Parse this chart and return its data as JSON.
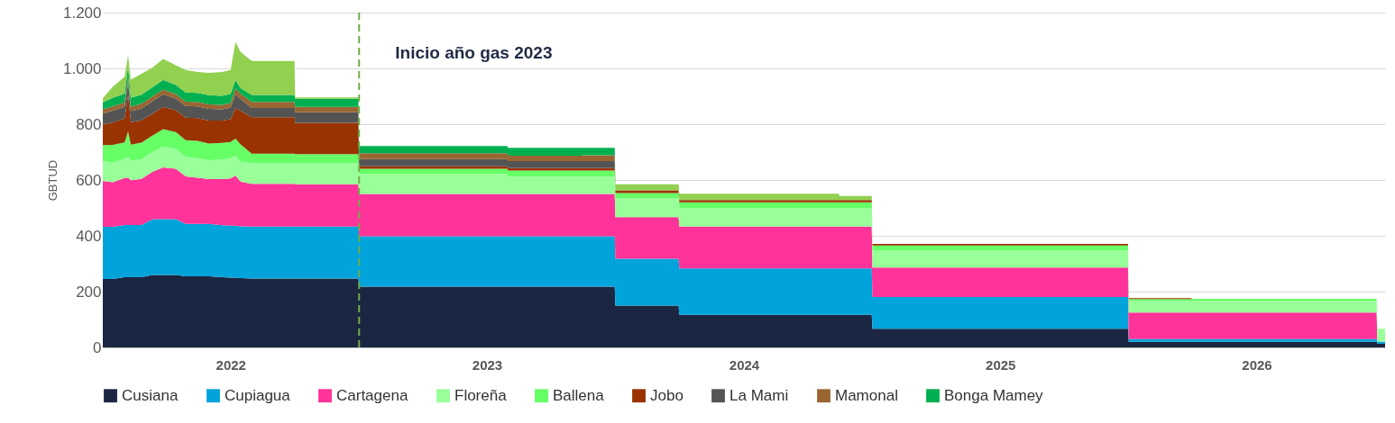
{
  "chart_data": {
    "type": "area",
    "stacked": true,
    "ylabel": "GBTUD",
    "x": [
      "2021-12-01",
      "2021-12-15",
      "2022-01-01",
      "2022-01-06",
      "2022-01-10",
      "2022-01-25",
      "2022-02-10",
      "2022-02-25",
      "2022-03-15",
      "2022-03-29",
      "2022-04-15",
      "2022-05-01",
      "2022-05-20",
      "2022-06-01",
      "2022-06-08",
      "2022-06-15",
      "2022-07-01",
      "2022-08-31",
      "2022-09-01",
      "2022-11-30",
      "2022-12-01",
      "2023-06-30",
      "2023-07-01",
      "2023-10-14",
      "2023-10-15",
      "2023-11-30",
      "2023-12-01",
      "2024-02-29",
      "2024-03-01",
      "2024-10-14",
      "2024-10-15",
      "2024-11-30",
      "2024-12-01",
      "2025-11-30",
      "2025-12-01",
      "2026-02-28",
      "2026-03-01",
      "2026-11-19",
      "2026-11-20",
      "2026-12-01"
    ],
    "series": [
      {
        "name": "Cusiana",
        "color": "#1b2642",
        "values": [
          245,
          245,
          252,
          252,
          252,
          252,
          260,
          260,
          260,
          255,
          255,
          255,
          252,
          250,
          250,
          248,
          247,
          247,
          247,
          247,
          218,
          218,
          218,
          218,
          218,
          218,
          150,
          150,
          117,
          117,
          117,
          117,
          67,
          67,
          20,
          20,
          20,
          20,
          13,
          13
        ]
      },
      {
        "name": "Cupiagua",
        "color": "#00a3da",
        "values": [
          187,
          187,
          187,
          187,
          187,
          187,
          200,
          200,
          200,
          188,
          188,
          188,
          186,
          186,
          186,
          186,
          186,
          186,
          186,
          186,
          180,
          180,
          180,
          180,
          180,
          180,
          168,
          168,
          166,
          166,
          166,
          166,
          114,
          114,
          10,
          10,
          10,
          10,
          8,
          8
        ]
      },
      {
        "name": "Cartagena",
        "color": "#ff3399",
        "values": [
          165,
          160,
          168,
          170,
          160,
          165,
          170,
          185,
          180,
          170,
          165,
          160,
          165,
          170,
          180,
          160,
          153,
          153,
          152,
          152,
          152,
          152,
          152,
          152,
          152,
          152,
          149,
          149,
          150,
          150,
          150,
          150,
          105,
          105,
          95,
          95,
          95,
          95,
          0,
          0
        ]
      },
      {
        "name": "Floreña",
        "color": "#99ff99",
        "values": [
          70,
          72,
          68,
          75,
          70,
          70,
          70,
          75,
          72,
          70,
          70,
          68,
          70,
          72,
          72,
          72,
          75,
          75,
          75,
          75,
          72,
          72,
          62,
          62,
          62,
          62,
          68,
          68,
          67,
          67,
          67,
          67,
          62,
          62,
          41,
          41,
          42,
          42,
          42,
          42
        ]
      },
      {
        "name": "Ballena",
        "color": "#66ff66",
        "values": [
          58,
          62,
          60,
          90,
          58,
          60,
          60,
          62,
          60,
          60,
          62,
          60,
          60,
          58,
          60,
          62,
          33,
          33,
          33,
          33,
          18,
          18,
          22,
          22,
          22,
          22,
          18,
          18,
          20,
          20,
          20,
          20,
          17,
          17,
          7,
          7,
          7,
          7,
          3,
          3
        ]
      },
      {
        "name": "Jobo",
        "color": "#993300",
        "values": [
          75,
          80,
          85,
          130,
          80,
          80,
          78,
          80,
          78,
          80,
          82,
          82,
          80,
          82,
          110,
          120,
          131,
          131,
          112,
          112,
          9,
          9,
          9,
          9,
          9,
          9,
          10,
          10,
          8,
          8,
          8,
          8,
          6,
          6,
          4,
          4,
          0,
          0,
          0,
          0
        ]
      },
      {
        "name": "La Mami",
        "color": "#545454",
        "values": [
          38,
          42,
          42,
          45,
          40,
          42,
          45,
          45,
          42,
          42,
          42,
          42,
          40,
          42,
          50,
          42,
          33,
          33,
          38,
          38,
          26,
          26,
          25,
          25,
          25,
          25,
          0,
          0,
          0,
          0,
          0,
          0,
          0,
          0,
          0,
          0,
          0,
          0,
          0,
          0
        ]
      },
      {
        "name": "Mamonal",
        "color": "#996633",
        "values": [
          15,
          16,
          16,
          18,
          16,
          17,
          17,
          17,
          16,
          16,
          16,
          16,
          16,
          16,
          20,
          20,
          22,
          22,
          19,
          19,
          21,
          21,
          19,
          19,
          21,
          21,
          0,
          0,
          0,
          0,
          0,
          0,
          0,
          0,
          0,
          0,
          0,
          0,
          0,
          0
        ]
      },
      {
        "name": "Bonga Mamey",
        "color": "#00b050",
        "values": [
          25,
          30,
          32,
          40,
          32,
          33,
          33,
          35,
          33,
          33,
          32,
          33,
          33,
          33,
          30,
          20,
          25,
          25,
          29,
          29,
          26,
          26,
          28,
          28,
          26,
          26,
          0,
          0,
          0,
          0,
          0,
          0,
          0,
          0,
          0,
          0,
          0,
          0,
          0,
          0
        ]
      },
      {
        "color": "#92d050",
        "values": [
          15,
          40,
          60,
          40,
          65,
          75,
          70,
          75,
          70,
          80,
          75,
          80,
          85,
          85,
          137,
          130,
          122,
          122,
          5,
          5,
          0,
          0,
          0,
          0,
          0,
          0,
          22,
          22,
          23,
          23,
          15,
          15,
          0,
          0,
          0,
          0,
          0,
          0,
          0,
          0
        ]
      }
    ],
    "xlim": [
      "2021-12-01",
      "2026-12-01"
    ],
    "xticks": [
      {
        "value": "2022-06-01",
        "label": "2022"
      },
      {
        "value": "2023-06-01",
        "label": "2023"
      },
      {
        "value": "2024-06-01",
        "label": "2024"
      },
      {
        "value": "2025-06-01",
        "label": "2025"
      },
      {
        "value": "2026-06-01",
        "label": "2026"
      }
    ],
    "ylim": [
      0,
      1200
    ],
    "yticks": [
      0,
      200,
      400,
      600,
      800,
      {
        "value": 1000,
        "label": "1.000"
      },
      {
        "value": 1200,
        "label": "1.200"
      }
    ],
    "ref_lines": [
      {
        "axis": "x",
        "value": "2022-12-01",
        "label": "Inicio año gas 2023",
        "color": "#70ad47",
        "line_style": "dashed"
      }
    ],
    "grid": "y",
    "legend": "bottom"
  }
}
